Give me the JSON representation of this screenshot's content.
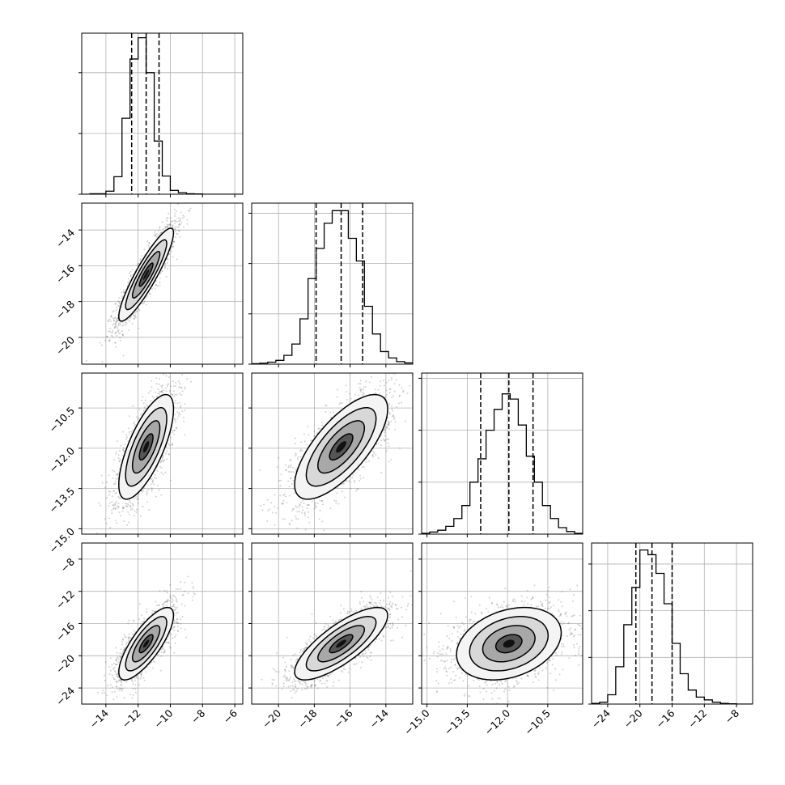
{
  "figure": {
    "type": "corner",
    "colors": {
      "line": "#000000",
      "grid": "#b0b0b0",
      "point": "#4d4d4d",
      "background": "#ffffff"
    }
  },
  "chart_data": {
    "type": "corner",
    "description_of_grid": "4x4 lower-triangular corner plot",
    "grid_lines": true,
    "parameters": [
      {
        "range": [
          -15.5,
          -5.5
        ],
        "ticks": [
          -14,
          -12,
          -10,
          -8,
          -6
        ],
        "tick_labels": [
          "−14",
          "−12",
          "−10",
          "−8",
          "−6"
        ],
        "quantiles": [
          -12.4,
          -11.5,
          -10.7
        ],
        "hist_edges": [
          -15.5,
          -15.0,
          -14.5,
          -14.0,
          -13.5,
          -13.0,
          -12.5,
          -12.0,
          -11.5,
          -11.0,
          -10.5,
          -10.0,
          -9.5,
          -9.0,
          -8.5,
          -8.0,
          -7.5,
          -7.0,
          -6.5,
          -6.0,
          -5.5
        ],
        "hist_counts": [
          0,
          3,
          3,
          20,
          115,
          500,
          890,
          1030,
          800,
          350,
          120,
          25,
          10,
          3,
          2,
          0,
          0,
          0,
          0,
          0
        ],
        "hist_ymax": 1060,
        "hist_yticks": [
          0,
          400,
          800
        ]
      },
      {
        "range": [
          -21.5,
          -12.5
        ],
        "ticks": [
          -20,
          -18,
          -16,
          -14
        ],
        "tick_labels": [
          "−20",
          "−18",
          "−16",
          "−14"
        ],
        "quantiles": [
          -17.9,
          -16.5,
          -15.3
        ],
        "hist_edges": [
          -21.5,
          -21.05,
          -20.6,
          -20.15,
          -19.7,
          -19.25,
          -18.8,
          -18.35,
          -17.9,
          -17.45,
          -17.0,
          -16.55,
          -16.1,
          -15.65,
          -15.2,
          -14.75,
          -14.3,
          -13.85,
          -13.4,
          -12.95,
          -12.5
        ],
        "hist_counts": [
          2,
          4,
          8,
          15,
          35,
          80,
          180,
          340,
          460,
          560,
          610,
          610,
          500,
          410,
          230,
          120,
          50,
          25,
          10,
          5
        ],
        "hist_ymax": 640,
        "hist_yticks": [
          0,
          200,
          400,
          600
        ]
      },
      {
        "range": [
          -15.2,
          -9.2
        ],
        "ticks": [
          -15.0,
          -13.5,
          -12.0,
          -10.5
        ],
        "tick_labels": [
          "−15.0",
          "−13.5",
          "−12.0",
          "−10.5"
        ],
        "quantiles": [
          -13.0,
          -11.95,
          -11.05
        ],
        "hist_edges": [
          -15.2,
          -14.9,
          -14.6,
          -14.3,
          -14.0,
          -13.7,
          -13.4,
          -13.1,
          -12.8,
          -12.5,
          -12.2,
          -11.9,
          -11.6,
          -11.3,
          -11.0,
          -10.7,
          -10.4,
          -10.1,
          -9.8,
          -9.5,
          -9.2
        ],
        "hist_counts": [
          3,
          8,
          15,
          30,
          60,
          110,
          200,
          290,
          400,
          480,
          540,
          520,
          420,
          300,
          200,
          110,
          60,
          25,
          10,
          3
        ],
        "hist_ymax": 620,
        "hist_yticks": [
          0,
          200,
          400,
          600
        ]
      },
      {
        "range": [
          -26.0,
          -6.0
        ],
        "ticks": [
          -24,
          -20,
          -16,
          -12,
          -8
        ],
        "tick_labels": [
          "−24",
          "−20",
          "−16",
          "−12",
          "−8"
        ],
        "quantiles": [
          -20.5,
          -18.5,
          -16.0
        ],
        "hist_edges": [
          -26.0,
          -25.0,
          -24.0,
          -23.0,
          -22.0,
          -21.0,
          -20.0,
          -19.0,
          -18.0,
          -17.0,
          -16.0,
          -15.0,
          -14.0,
          -13.0,
          -12.0,
          -11.0,
          -10.0,
          -9.0,
          -8.0,
          -7.0,
          -6.0
        ],
        "hist_counts": [
          3,
          8,
          40,
          160,
          340,
          500,
          660,
          640,
          560,
          430,
          260,
          130,
          60,
          30,
          18,
          8,
          3,
          1,
          0,
          0
        ],
        "hist_ymax": 690,
        "hist_yticks": [
          0,
          200,
          400,
          600
        ]
      }
    ],
    "correlations": {
      "1_0": 0.9,
      "2_0": 0.72,
      "2_1": 0.72,
      "3_0": 0.78,
      "3_1": 0.78,
      "3_2": 0.3
    }
  }
}
